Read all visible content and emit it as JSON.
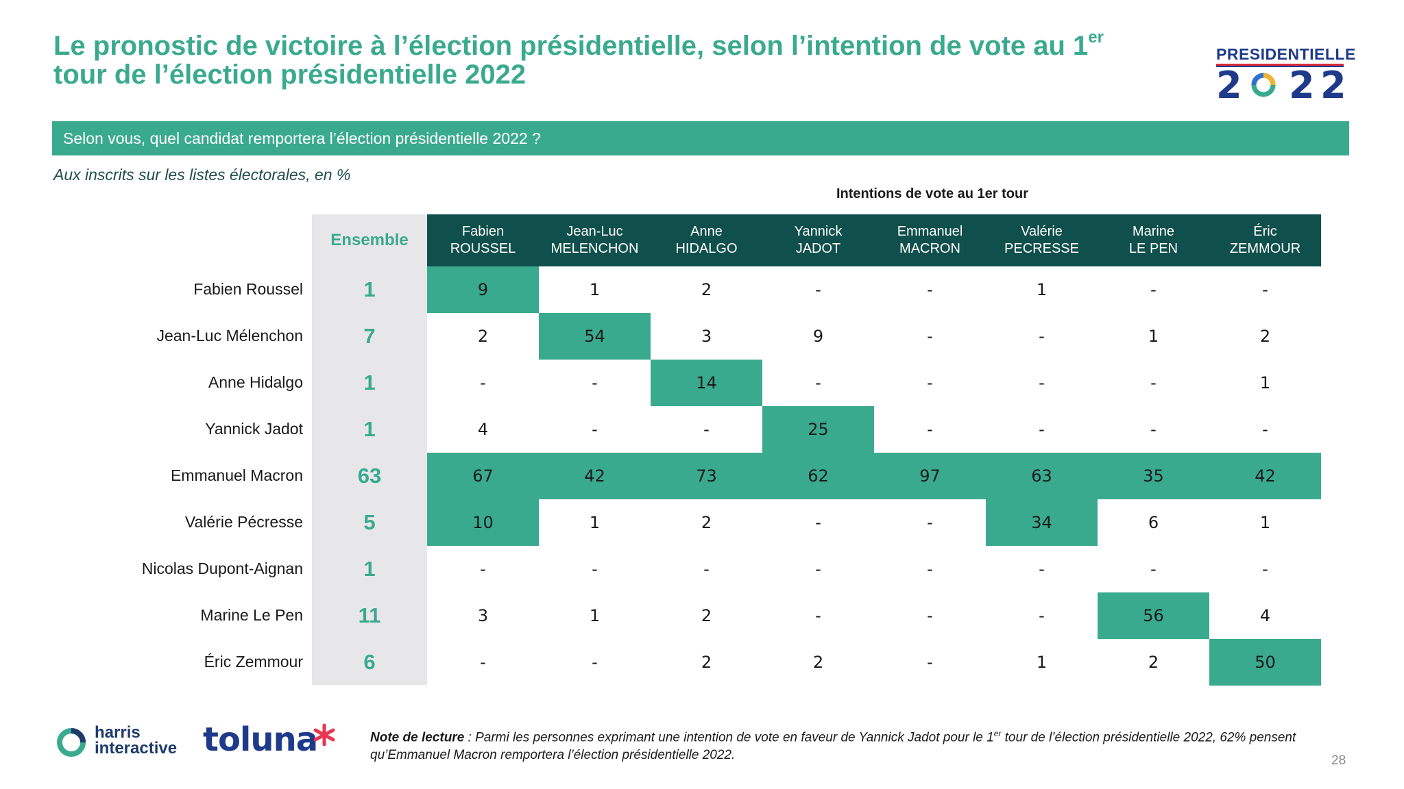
{
  "title": {
    "line1_pre": "Le pronostic de victoire à l’élection présidentielle, selon l’intention de vote au 1",
    "line1_sup": "er",
    "line2": "tour de l’élection présidentielle 2022"
  },
  "logo": {
    "top": "PRESIDENTIELLE",
    "digits": [
      "2",
      "2",
      "2"
    ]
  },
  "question": "Selon vous, quel candidat remportera l’élection présidentielle 2022 ?",
  "base": "Aux inscrits sur les listes électorales, en %",
  "table_header": "Intentions de vote au 1er tour",
  "ensemble_header": "Ensemble",
  "columns": [
    {
      "first": "Fabien",
      "last": "ROUSSEL"
    },
    {
      "first": "Jean-Luc",
      "last": "MELENCHON"
    },
    {
      "first": "Anne",
      "last": "HIDALGO"
    },
    {
      "first": "Yannick",
      "last": "JADOT"
    },
    {
      "first": "Emmanuel",
      "last": "MACRON"
    },
    {
      "first": "Valérie",
      "last": "PECRESSE"
    },
    {
      "first": "Marine",
      "last": "LE PEN"
    },
    {
      "first": "Éric",
      "last": "ZEMMOUR"
    }
  ],
  "colors": {
    "accent": "#3aaa8f",
    "header_dark": "#0f4f4c",
    "ensemble_bg": "#e7e7e9"
  },
  "chart_data": {
    "type": "table",
    "title": "Le pronostic de victoire à l’élection présidentielle, selon l’intention de vote au 1er tour de l’élection présidentielle 2022",
    "rows": [
      {
        "label": "Fabien Roussel",
        "ensemble": "1",
        "values": [
          "9",
          "1",
          "2",
          "-",
          "-",
          "1",
          "-",
          "-"
        ],
        "highlight": [
          0
        ]
      },
      {
        "label": "Jean-Luc Mélenchon",
        "ensemble": "7",
        "values": [
          "2",
          "54",
          "3",
          "9",
          "-",
          "-",
          "1",
          "2"
        ],
        "highlight": [
          1
        ]
      },
      {
        "label": "Anne Hidalgo",
        "ensemble": "1",
        "values": [
          "-",
          "-",
          "14",
          "-",
          "-",
          "-",
          "-",
          "1"
        ],
        "highlight": [
          2
        ]
      },
      {
        "label": "Yannick Jadot",
        "ensemble": "1",
        "values": [
          "4",
          "-",
          "-",
          "25",
          "-",
          "-",
          "-",
          "-"
        ],
        "highlight": [
          3
        ]
      },
      {
        "label": "Emmanuel Macron",
        "ensemble": "63",
        "values": [
          "67",
          "42",
          "73",
          "62",
          "97",
          "63",
          "35",
          "42"
        ],
        "highlight": [
          0,
          1,
          2,
          3,
          4,
          5,
          6,
          7
        ]
      },
      {
        "label": "Valérie Pécresse",
        "ensemble": "5",
        "values": [
          "10",
          "1",
          "2",
          "-",
          "-",
          "34",
          "6",
          "1"
        ],
        "highlight": [
          0,
          5
        ]
      },
      {
        "label": "Nicolas Dupont-Aignan",
        "ensemble": "1",
        "values": [
          "-",
          "-",
          "-",
          "-",
          "-",
          "-",
          "-",
          "-"
        ],
        "highlight": []
      },
      {
        "label": "Marine Le Pen",
        "ensemble": "11",
        "values": [
          "3",
          "1",
          "2",
          "-",
          "-",
          "-",
          "56",
          "4"
        ],
        "highlight": [
          6
        ]
      },
      {
        "label": "Éric Zemmour",
        "ensemble": "6",
        "values": [
          "-",
          "-",
          "2",
          "2",
          "-",
          "1",
          "2",
          "50"
        ],
        "highlight": [
          7
        ]
      }
    ]
  },
  "footer": {
    "note_label": "Note de lecture",
    "note_part1": " : Parmi les personnes exprimant une intention de vote en faveur de Yannick Jadot pour le 1",
    "note_sup": "er",
    "note_part2": " tour de l’élection présidentielle 2022, 62% pensent qu’Emmanuel Macron remportera l’élection présidentielle 2022.",
    "harris_line1": "harris",
    "harris_line2": "interactive",
    "toluna": "toluna"
  },
  "page_number": "28"
}
